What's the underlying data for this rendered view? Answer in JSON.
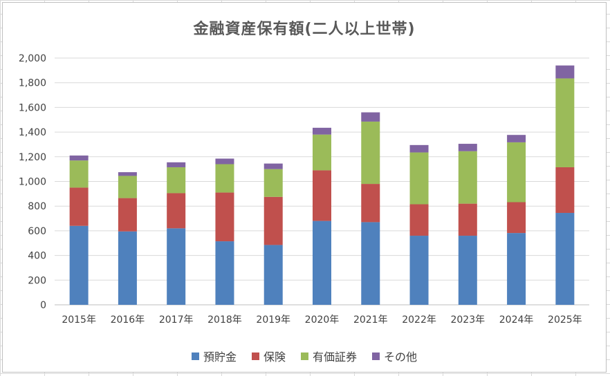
{
  "colors": {
    "deposits": "#4F81BD",
    "insurance": "#C0504D",
    "securities": "#9BBB59",
    "other": "#8064A2",
    "grid": "#D9D9D9",
    "axis": "#BFBFBF"
  },
  "legend": {
    "items": [
      {
        "label": "預貯金",
        "color": "#4F81BD"
      },
      {
        "label": "保険",
        "color": "#C0504D"
      },
      {
        "label": "有価証券",
        "color": "#9BBB59"
      },
      {
        "label": "その他",
        "color": "#8064A2"
      }
    ]
  },
  "chart_data": {
    "type": "bar",
    "stacked": true,
    "title": "金融資産保有額(二人以上世帯)",
    "xlabel": "",
    "ylabel": "",
    "ylim": [
      0,
      2000
    ],
    "yticks": [
      0,
      200,
      400,
      600,
      800,
      1000,
      1200,
      1400,
      1600,
      1800,
      2000
    ],
    "ytick_labels": [
      "0",
      "200",
      "400",
      "600",
      "800",
      "1,000",
      "1,200",
      "1,400",
      "1,600",
      "1,800",
      "2,000"
    ],
    "grid": true,
    "legend_position": "bottom",
    "categories": [
      "2015年",
      "2016年",
      "2017年",
      "2018年",
      "2019年",
      "2020年",
      "2021年",
      "2022年",
      "2023年",
      "2024年",
      "2025年"
    ],
    "series": [
      {
        "name": "預貯金",
        "values": [
          640,
          595,
          620,
          515,
          485,
          680,
          670,
          560,
          560,
          582,
          745
        ]
      },
      {
        "name": "保険",
        "values": [
          310,
          270,
          285,
          395,
          390,
          410,
          310,
          255,
          260,
          250,
          370
        ]
      },
      {
        "name": "有価証券",
        "values": [
          220,
          180,
          210,
          230,
          225,
          290,
          505,
          420,
          425,
          485,
          720
        ]
      },
      {
        "name": "その他",
        "values": [
          40,
          30,
          40,
          45,
          45,
          55,
          75,
          60,
          60,
          60,
          105
        ]
      }
    ]
  }
}
